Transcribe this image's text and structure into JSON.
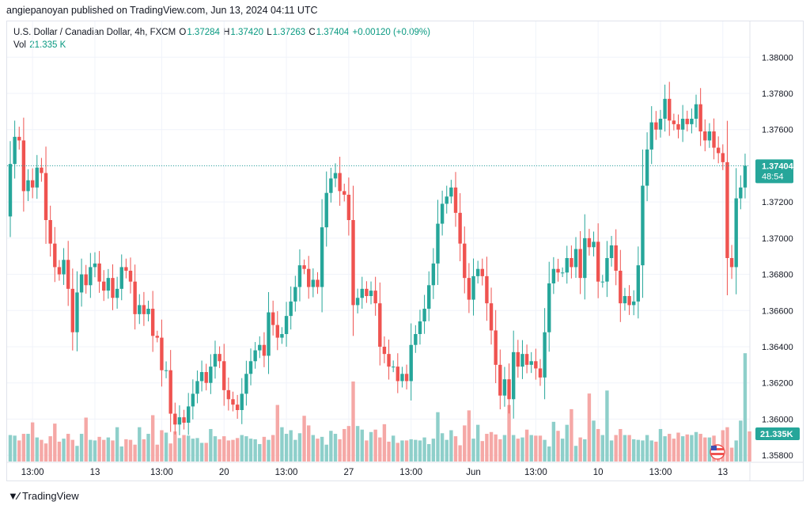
{
  "header": {
    "published": "angiepanoyan published on TradingView.com, Jun 13, 2024 04:11 UTC"
  },
  "legend": {
    "symbol": "U.S. Dollar / Canadian Dollar, 4h, FXCM",
    "o_label": "O",
    "o_value": "1.37284",
    "h_label": "H",
    "h_value": "1.37420",
    "l_label": "L",
    "l_value": "1.37263",
    "c_label": "C",
    "c_value": "1.37404",
    "change": "+0.00120 (+0.09%)",
    "vol_label": "Vol",
    "vol_value": "21.335 K"
  },
  "footer": {
    "logo_icon": "tradingview-logo-icon",
    "brand": "TradingView"
  },
  "colors": {
    "up": "#26a69a",
    "down": "#ef5350",
    "vol_up": "#8ecfca",
    "vol_down": "#f5a8a6",
    "grid": "#f0f3fa"
  },
  "chart_data": {
    "type": "candlestick",
    "ylim": [
      1.3584,
      1.3808
    ],
    "y_ticks": [
      "1.38000",
      "1.37800",
      "1.37600",
      "1.37400",
      "1.37200",
      "1.37000",
      "1.36800",
      "1.36600",
      "1.36400",
      "1.36200",
      "1.36000",
      "1.35800"
    ],
    "y_tick_values": [
      1.38,
      1.378,
      1.376,
      1.374,
      1.372,
      1.37,
      1.368,
      1.366,
      1.364,
      1.362,
      1.36,
      1.358
    ],
    "x_tick_labels": [
      "13:00",
      "13",
      "13:00",
      "20",
      "13:00",
      "27",
      "13:00",
      "Jun",
      "13:00",
      "10",
      "13:00",
      "13"
    ],
    "x_tick_index": [
      5,
      19,
      34,
      48,
      62,
      76,
      90,
      104,
      118,
      132,
      146,
      160
    ],
    "last_price_label": "1.37404",
    "countdown_label": "48:54",
    "last_volume_label": "21.335K",
    "start_price": 1.3712,
    "closes": [
      1.3741,
      1.3756,
      1.3754,
      1.3726,
      1.3732,
      1.3728,
      1.3739,
      1.3736,
      1.371,
      1.3697,
      1.3684,
      1.368,
      1.3688,
      1.3672,
      1.3648,
      1.367,
      1.368,
      1.3674,
      1.3684,
      1.3686,
      1.3676,
      1.3671,
      1.3678,
      1.3667,
      1.3672,
      1.3684,
      1.3682,
      1.3676,
      1.3658,
      1.3663,
      1.3658,
      1.3661,
      1.3646,
      1.3645,
      1.3627,
      1.3627,
      1.3603,
      1.3597,
      1.3601,
      1.3598,
      1.3607,
      1.3614,
      1.3621,
      1.3626,
      1.362,
      1.3629,
      1.3636,
      1.3632,
      1.3616,
      1.3611,
      1.3608,
      1.3605,
      1.3614,
      1.3625,
      1.3632,
      1.3638,
      1.3641,
      1.3635,
      1.3659,
      1.3652,
      1.3645,
      1.3647,
      1.3657,
      1.3665,
      1.3673,
      1.3685,
      1.3683,
      1.3673,
      1.3677,
      1.3673,
      1.3706,
      1.3725,
      1.3733,
      1.3736,
      1.3726,
      1.3724,
      1.371,
      1.3663,
      1.3667,
      1.3672,
      1.3668,
      1.3671,
      1.3664,
      1.364,
      1.3636,
      1.3629,
      1.3629,
      1.3621,
      1.3625,
      1.3621,
      1.3641,
      1.3647,
      1.3654,
      1.3661,
      1.3674,
      1.3686,
      1.3708,
      1.3719,
      1.3723,
      1.3728,
      1.3714,
      1.3697,
      1.3678,
      1.3666,
      1.3679,
      1.3683,
      1.3679,
      1.3664,
      1.3649,
      1.363,
      1.3613,
      1.3622,
      1.3611,
      1.3637,
      1.3629,
      1.3636,
      1.363,
      1.3632,
      1.3628,
      1.3623,
      1.3648,
      1.3675,
      1.3683,
      1.3681,
      1.3681,
      1.3689,
      1.3684,
      1.3694,
      1.3678,
      1.37,
      1.3695,
      1.3698,
      1.3676,
      1.3676,
      1.3689,
      1.3696,
      1.3682,
      1.3664,
      1.3668,
      1.3663,
      1.3665,
      1.3685,
      1.3729,
      1.3749,
      1.3764,
      1.376,
      1.3766,
      1.3777,
      1.3765,
      1.3763,
      1.376,
      1.3766,
      1.3763,
      1.3766,
      1.3774,
      1.3759,
      1.3754,
      1.3759,
      1.375,
      1.3747,
      1.3742,
      1.3689,
      1.3684,
      1.3722,
      1.3728,
      1.374
    ],
    "volumes": [
      0.44,
      0.43,
      0.35,
      0.46,
      0.46,
      0.65,
      0.4,
      0.36,
      0.3,
      0.42,
      0.63,
      0.33,
      0.38,
      0.46,
      0.36,
      0.26,
      0.46,
      0.73,
      0.36,
      0.35,
      0.41,
      0.36,
      0.4,
      0.35,
      0.57,
      0.25,
      0.37,
      0.36,
      0.28,
      0.57,
      0.37,
      0.46,
      0.77,
      0.28,
      0.52,
      0.48,
      0.3,
      0.5,
      0.39,
      0.44,
      0.43,
      0.38,
      0.39,
      0.31,
      0.31,
      0.54,
      0.42,
      0.37,
      0.42,
      0.35,
      0.36,
      0.39,
      0.44,
      0.42,
      0.38,
      0.37,
      0.29,
      0.41,
      0.36,
      0.44,
      0.94,
      0.57,
      0.46,
      0.52,
      0.36,
      0.47,
      0.76,
      0.6,
      0.44,
      0.38,
      0.41,
      0.28,
      0.51,
      0.46,
      0.37,
      0.54,
      0.59,
      1.33,
      0.59,
      0.53,
      0.35,
      0.49,
      0.53,
      0.4,
      0.62,
      0.33,
      0.43,
      0.31,
      0.35,
      0.35,
      0.37,
      0.36,
      0.35,
      0.4,
      0.29,
      0.38,
      0.82,
      0.47,
      0.36,
      0.52,
      0.42,
      0.27,
      0.6,
      0.85,
      0.38,
      0.61,
      0.34,
      0.46,
      0.49,
      0.45,
      0.37,
      0.44,
      0.94,
      0.44,
      0.38,
      0.4,
      0.53,
      0.44,
      0.43,
      0.43,
      0.36,
      0.25,
      0.66,
      0.51,
      0.38,
      0.61,
      0.87,
      0.26,
      0.4,
      0.37,
      1.13,
      0.68,
      0.54,
      0.44,
      1.18,
      0.35,
      0.44,
      0.54,
      0.44,
      0.44,
      0.37,
      0.36,
      0.35,
      0.44,
      0.35,
      0.33,
      0.54,
      0.42,
      0.46,
      0.38,
      0.48,
      0.42,
      0.45,
      0.44,
      0.49,
      0.46,
      0.4,
      0.4,
      0.43,
      0.26,
      0.52,
      0.57,
      0.23,
      0.35,
      0.68,
      1.8,
      0.5
    ]
  }
}
